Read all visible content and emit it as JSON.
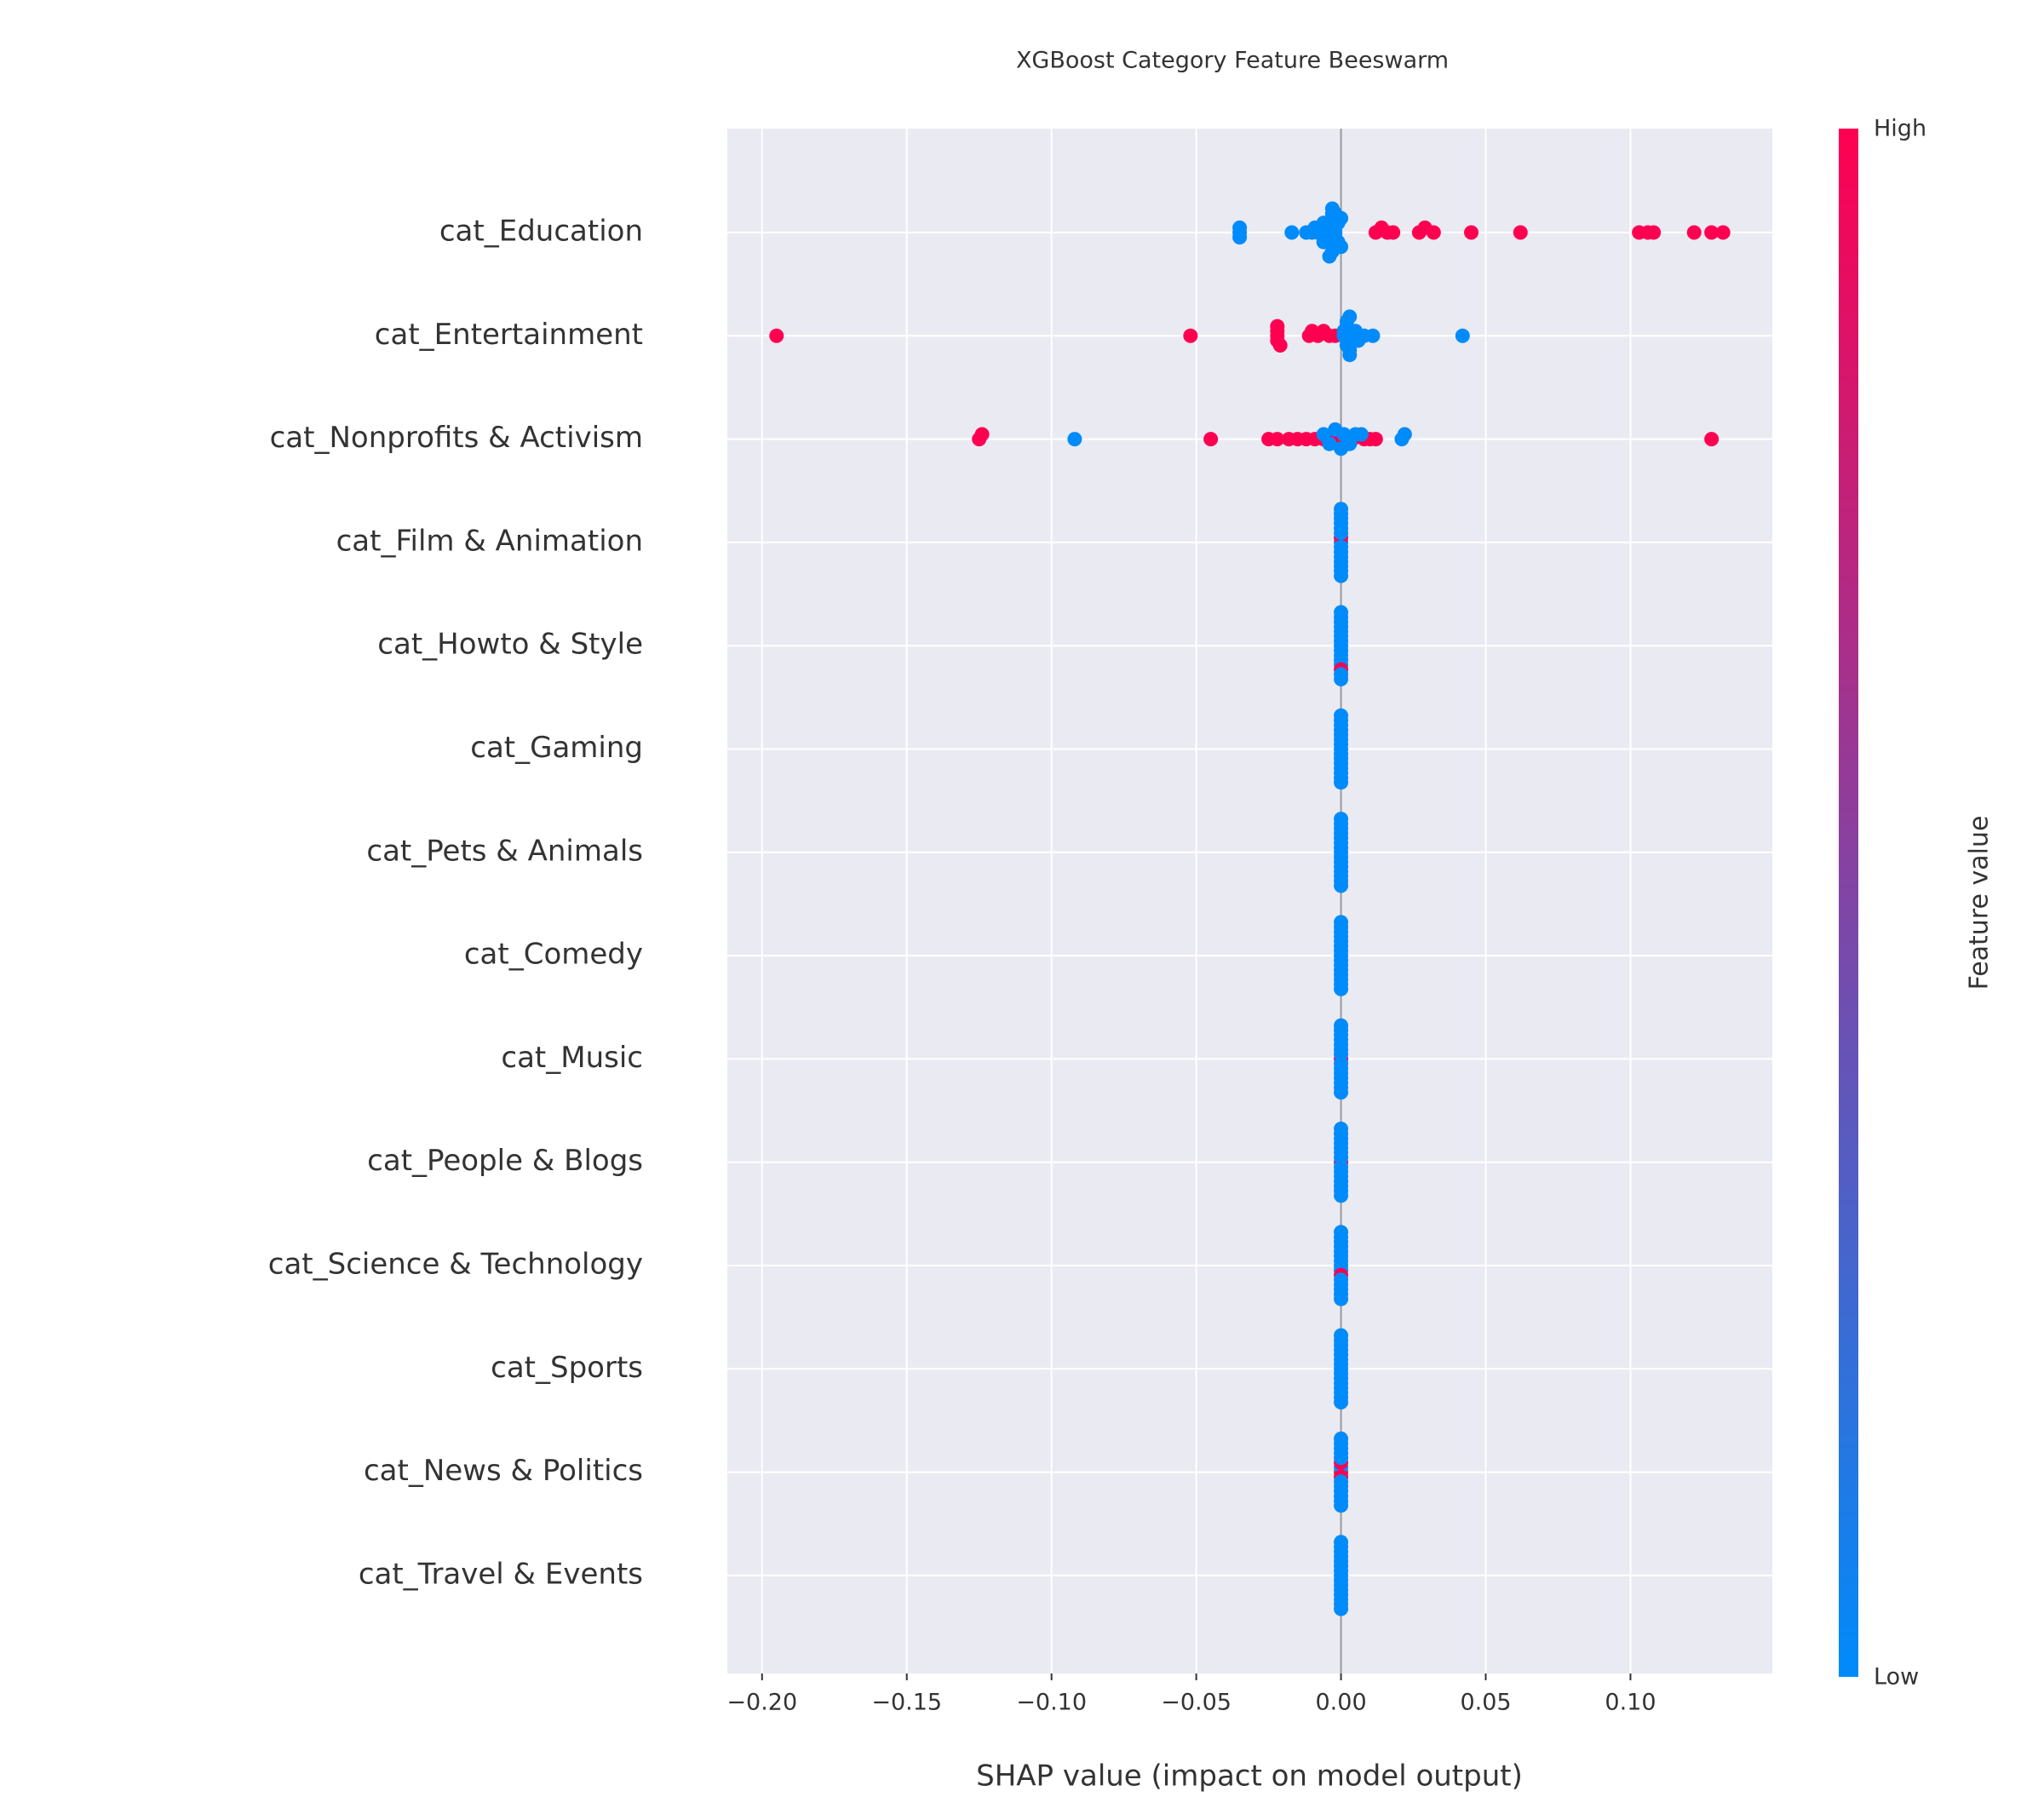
{
  "chart_data": {
    "type": "beeswarm",
    "title": "XGBoost Category Feature Beeswarm",
    "x_label": "SHAP value (impact on model output)",
    "xlim": [
      -0.212,
      0.149
    ],
    "xticks": [
      {
        "value": -0.2,
        "label": "−0.20"
      },
      {
        "value": -0.15,
        "label": "−0.15"
      },
      {
        "value": -0.1,
        "label": "−0.10"
      },
      {
        "value": -0.05,
        "label": "−0.05"
      },
      {
        "value": 0,
        "label": "0.00"
      },
      {
        "value": 0.05,
        "label": "0.05"
      },
      {
        "value": 0.1,
        "label": "0.10"
      }
    ],
    "grid": true,
    "colorbar": {
      "title": "Feature value",
      "high_label": "High",
      "low_label": "Low",
      "low_color": "#008bfb",
      "high_color": "#ff0051"
    },
    "features": [
      {
        "name": "cat_Education",
        "shap": [
          -0.035,
          -0.035,
          -0.035,
          -0.017,
          -0.012,
          -0.01,
          -0.009,
          -0.008,
          -0.007,
          -0.006,
          -0.006,
          -0.005,
          -0.005,
          -0.004,
          -0.004,
          -0.004,
          -0.003,
          -0.003,
          -0.003,
          -0.003,
          -0.002,
          -0.002,
          -0.002,
          -0.001,
          -0.001,
          0,
          0,
          -0.002,
          -0.003,
          -0.004,
          -0.006,
          0.012,
          0.014,
          0.016,
          0.018,
          0.027,
          0.029,
          0.032,
          0.045,
          0.062,
          0.103,
          0.106,
          0.108,
          0.122,
          0.128,
          0.132
        ],
        "feature_value": [
          0,
          0,
          0,
          0,
          0,
          0,
          0,
          0,
          0,
          0,
          0,
          0,
          0,
          0,
          0,
          0,
          0,
          0,
          0,
          0,
          0,
          0,
          0,
          0,
          0,
          0,
          0,
          0,
          0,
          0,
          0,
          1,
          1,
          1,
          1,
          1,
          1,
          1,
          1,
          1,
          1,
          1,
          1,
          1,
          1,
          1
        ]
      },
      {
        "name": "cat_Entertainment",
        "shap": [
          -0.195,
          -0.052,
          -0.022,
          -0.022,
          -0.022,
          -0.022,
          -0.021,
          -0.011,
          -0.01,
          -0.008,
          -0.006,
          -0.004,
          -0.002,
          0.001,
          0.001,
          0.002,
          0.002,
          0.002,
          0.002,
          0.003,
          0.003,
          0.003,
          0.004,
          0.005,
          0.006,
          0.008,
          0.011,
          0.042
        ],
        "feature_value": [
          1,
          1,
          1,
          1,
          1,
          1,
          1,
          1,
          1,
          1,
          1,
          1,
          1,
          0,
          0,
          0,
          0,
          0,
          0,
          0,
          0,
          0,
          0,
          0,
          0,
          0,
          0,
          0
        ]
      },
      {
        "name": "cat_Nonprofits & Activism",
        "shap": [
          -0.125,
          -0.124,
          -0.045,
          -0.025,
          -0.022,
          -0.018,
          -0.015,
          -0.012,
          -0.009,
          -0.006,
          -0.004,
          -0.003,
          -0.002,
          -0.001,
          0,
          0.002,
          0.004,
          0.008,
          0.01,
          0.012,
          0.128,
          -0.092,
          -0.006,
          -0.004,
          -0.002,
          0,
          0.001,
          0.003,
          0.005,
          0.007,
          0.021,
          0.022
        ],
        "feature_value": [
          1,
          1,
          1,
          1,
          1,
          1,
          1,
          1,
          1,
          1,
          1,
          1,
          1,
          1,
          1,
          1,
          1,
          1,
          1,
          1,
          1,
          0,
          0,
          0,
          0,
          0,
          0,
          0,
          0,
          0,
          0,
          0
        ]
      },
      {
        "name": "cat_Film & Animation",
        "shap": [
          0,
          0,
          0,
          0,
          0,
          0,
          0,
          0,
          0,
          0,
          0,
          0,
          0,
          0,
          0
        ],
        "feature_value": [
          0,
          1,
          0,
          0,
          0,
          0,
          0,
          0,
          0,
          0,
          0,
          0,
          0,
          0,
          0
        ]
      },
      {
        "name": "cat_Howto & Style",
        "shap": [
          0,
          0,
          0,
          0,
          0,
          0,
          0,
          0,
          0,
          0,
          0,
          0,
          0,
          0,
          0
        ],
        "feature_value": [
          0,
          0,
          0,
          0,
          0,
          0,
          0,
          0,
          0,
          0,
          1,
          0,
          0,
          0,
          0
        ]
      },
      {
        "name": "cat_Gaming",
        "shap": [
          0,
          0,
          0,
          0,
          0,
          0,
          0,
          0,
          0,
          0,
          0,
          0,
          0,
          0,
          0
        ],
        "feature_value": [
          0,
          0,
          0,
          0,
          0,
          0,
          0,
          0,
          0,
          0,
          0,
          0,
          0,
          0,
          0
        ]
      },
      {
        "name": "cat_Pets & Animals",
        "shap": [
          0,
          0,
          0,
          0,
          0,
          0,
          0,
          0,
          0,
          0,
          0,
          0,
          0,
          0,
          0
        ],
        "feature_value": [
          0,
          0,
          0,
          0,
          0,
          0,
          0,
          0,
          0,
          0,
          0,
          0,
          0,
          0,
          0
        ]
      },
      {
        "name": "cat_Comedy",
        "shap": [
          0,
          0,
          0,
          0,
          0,
          0,
          0,
          0,
          0,
          0,
          0,
          0,
          0,
          0,
          0
        ],
        "feature_value": [
          0,
          0,
          0,
          0,
          0,
          0,
          0,
          0,
          0,
          0,
          0,
          0,
          0,
          0,
          0
        ]
      },
      {
        "name": "cat_Music",
        "shap": [
          0,
          0,
          0,
          0,
          0,
          0,
          0,
          0,
          0,
          0,
          0,
          0,
          0,
          0,
          0
        ],
        "feature_value": [
          1,
          0,
          0,
          0,
          0,
          0,
          0,
          0,
          0,
          0,
          0,
          0,
          0,
          0,
          0
        ]
      },
      {
        "name": "cat_People & Blogs",
        "shap": [
          0,
          0,
          0,
          0,
          0,
          0,
          0,
          0,
          0,
          0,
          0,
          0,
          0,
          0,
          0
        ],
        "feature_value": [
          1,
          0,
          0,
          0,
          0,
          0,
          0,
          0,
          0,
          0,
          0,
          0,
          0,
          0,
          0
        ]
      },
      {
        "name": "cat_Science & Technology",
        "shap": [
          0,
          0,
          0,
          0,
          0,
          0,
          0,
          0,
          0,
          0,
          0,
          0,
          0,
          0,
          0
        ],
        "feature_value": [
          0,
          0,
          0,
          0,
          1,
          0,
          0,
          0,
          0,
          0,
          0,
          0,
          0,
          0,
          0
        ]
      },
      {
        "name": "cat_Sports",
        "shap": [
          0,
          0,
          0,
          0,
          0,
          0,
          0,
          0,
          0,
          0,
          0,
          0,
          0,
          0,
          0
        ],
        "feature_value": [
          0,
          0,
          0,
          0,
          0,
          0,
          0,
          0,
          0,
          0,
          0,
          0,
          0,
          0,
          0
        ]
      },
      {
        "name": "cat_News & Politics",
        "shap": [
          0,
          0,
          0,
          0,
          0,
          0,
          0,
          0,
          0,
          0,
          0,
          0,
          0,
          0,
          0
        ],
        "feature_value": [
          1,
          0,
          1,
          1,
          0,
          0,
          0,
          0,
          0,
          0,
          0,
          0,
          0,
          0,
          0
        ]
      },
      {
        "name": "cat_Travel & Events",
        "shap": [
          0,
          0,
          0,
          0,
          0,
          0,
          0,
          0,
          0,
          0,
          0,
          0,
          0,
          0,
          0
        ],
        "feature_value": [
          0,
          0,
          0,
          0,
          0,
          0,
          0,
          0,
          0,
          0,
          0,
          0,
          0,
          0,
          0
        ]
      }
    ]
  }
}
